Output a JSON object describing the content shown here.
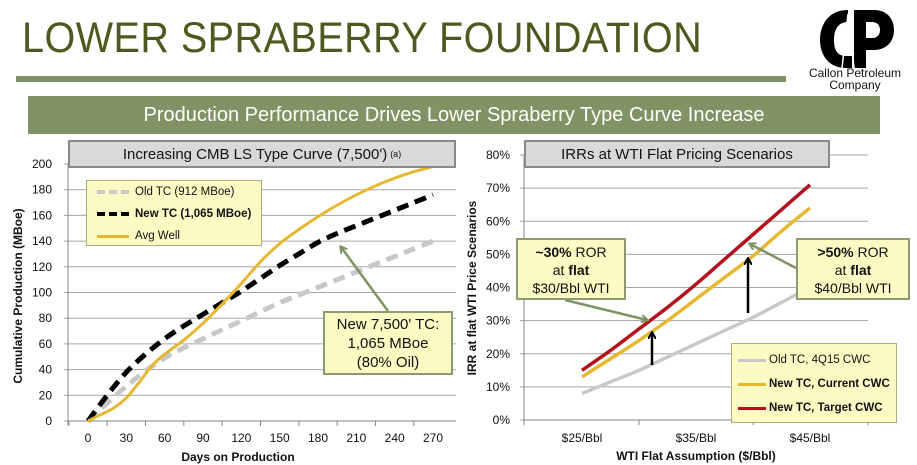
{
  "header": {
    "title": "LOWER SPRABERRY FOUNDATION",
    "banner": "Production Performance Drives Lower Spraberry Type Curve Increase",
    "logo_text_line1": "Callon Petroleum",
    "logo_text_line2": "Company"
  },
  "colors": {
    "banner_green": "#7f9365",
    "title_green": "#4d5a1f",
    "gold": "#e6b832",
    "red": "#b3121d",
    "grey": "#c8c8c8",
    "black": "#000000",
    "callout_fill": "#fdfbc4",
    "arrow_green": "#7f9365"
  },
  "left_chart": {
    "title_main": "Increasing CMB LS Type Curve (7,500')",
    "title_sup": "(a)",
    "legend": [
      "Old TC (912 MBoe)",
      "New TC (1,065 MBoe)",
      "Avg Well"
    ],
    "callout": [
      "New 7,500' TC:",
      "1,065 MBoe",
      "(80% Oil)"
    ]
  },
  "right_chart": {
    "title": "IRRs at WTI Flat Pricing Scenarios",
    "legend": [
      "Old TC, 4Q15 CWC",
      "New TC, Current CWC",
      "New TC, Target CWC"
    ],
    "callout_left": {
      "l1a": "~30%",
      "l1b": " ROR",
      "l2a": "at ",
      "l2b": "flat",
      "l3": "$30/Bbl WTI"
    },
    "callout_right": {
      "l1a": ">50%",
      "l1b": " ROR",
      "l2a": "at ",
      "l2b": "flat",
      "l3": "$40/Bbl WTI"
    }
  },
  "chart_data": [
    {
      "type": "line",
      "title": "Increasing CMB LS Type Curve (7,500') (a)",
      "xlabel": "Days on Production",
      "ylabel": "Cumulative Production (MBoe)",
      "xlim": [
        0,
        270
      ],
      "ylim": [
        0,
        200
      ],
      "xticks": [
        0,
        30,
        60,
        90,
        120,
        150,
        180,
        210,
        240,
        270
      ],
      "yticks": [
        0,
        20,
        40,
        60,
        80,
        100,
        120,
        140,
        160,
        180,
        200
      ],
      "grid": true,
      "legend_position": "top-left",
      "series": [
        {
          "name": "Old TC (912 MBoe)",
          "style": "dashed",
          "color": "#c8c8c8",
          "x": [
            0,
            15,
            30,
            45,
            60,
            75,
            90,
            105,
            120,
            135,
            150,
            165,
            180,
            195,
            210,
            225,
            240,
            255,
            270
          ],
          "y": [
            0,
            14,
            27,
            39,
            49,
            57,
            64,
            71,
            78,
            85,
            92,
            98,
            104,
            110,
            116,
            122,
            128,
            134,
            140
          ]
        },
        {
          "name": "New TC (1,065 MBoe)",
          "style": "dashed",
          "color": "#000000",
          "x": [
            0,
            15,
            30,
            45,
            60,
            75,
            90,
            105,
            120,
            135,
            150,
            165,
            180,
            195,
            210,
            225,
            240,
            255,
            270
          ],
          "y": [
            0,
            20,
            38,
            52,
            64,
            74,
            83,
            92,
            101,
            111,
            121,
            130,
            139,
            146,
            152,
            158,
            164,
            170,
            176
          ]
        },
        {
          "name": "Avg Well",
          "style": "solid",
          "color": "#e6b832",
          "x": [
            0,
            10,
            20,
            30,
            40,
            50,
            60,
            75,
            90,
            105,
            120,
            135,
            150,
            165,
            180,
            195,
            210,
            225,
            240,
            255,
            270
          ],
          "y": [
            0,
            5,
            10,
            18,
            30,
            43,
            52,
            63,
            76,
            91,
            107,
            124,
            138,
            149,
            159,
            168,
            176,
            183,
            189,
            194,
            198
          ]
        }
      ],
      "annotation": "New 7,500' TC: 1,065 MBoe (80% Oil)"
    },
    {
      "type": "line",
      "title": "IRRs at WTI Flat Pricing Scenarios",
      "xlabel": "WTI Flat Assumption ($/Bbl)",
      "ylabel": "IRR at flat WTI Price Scenarios",
      "categories": [
        "$25/Bbl",
        "$35/Bbl",
        "$45/Bbl"
      ],
      "x": [
        25,
        27.5,
        30,
        32.5,
        35,
        37.5,
        40,
        42.5,
        45
      ],
      "xlim": [
        20,
        50
      ],
      "ylim": [
        0,
        80
      ],
      "yticks": [
        "0%",
        "10%",
        "20%",
        "30%",
        "40%",
        "50%",
        "60%",
        "70%",
        "80%"
      ],
      "grid": true,
      "legend_position": "bottom-right",
      "series": [
        {
          "name": "Old TC, 4Q15 CWC",
          "color": "#c8c8c8",
          "values": [
            8,
            11.5,
            15,
            19,
            23,
            27,
            31,
            35.5,
            40
          ]
        },
        {
          "name": "New TC, Current CWC",
          "color": "#e6b832",
          "values": [
            13,
            18.5,
            24,
            30,
            36.5,
            43,
            49.5,
            57,
            64
          ]
        },
        {
          "name": "New TC, Target CWC",
          "color": "#b3121d",
          "values": [
            15,
            21,
            27.5,
            34,
            41,
            48.5,
            56,
            63.5,
            71
          ]
        }
      ],
      "annotations": [
        "~30% ROR at flat $30/Bbl WTI",
        ">50% ROR at flat $40/Bbl WTI"
      ]
    }
  ]
}
